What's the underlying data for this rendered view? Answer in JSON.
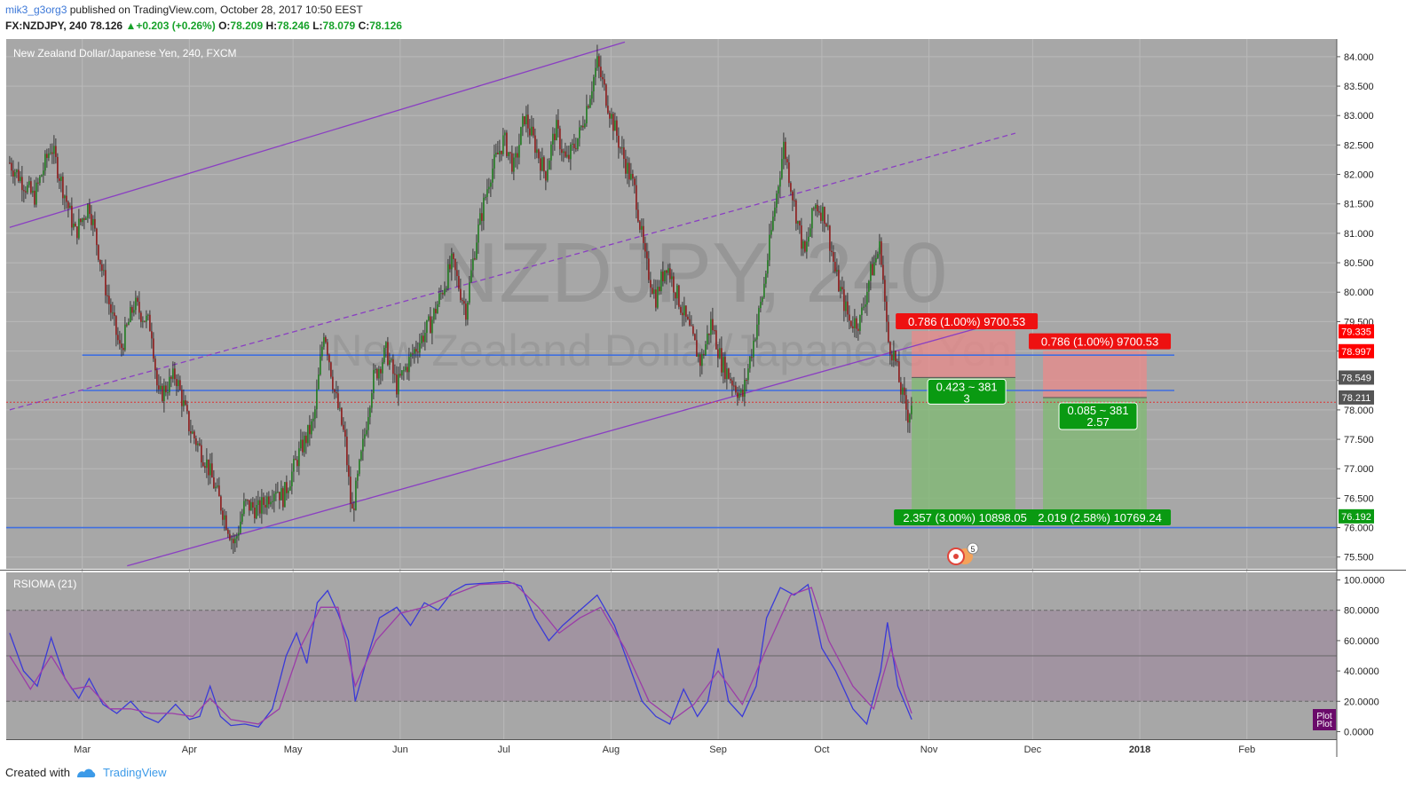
{
  "header": {
    "user": "mik3_g3org3",
    "published": "published on TradingView.com, October 28, 2017 10:50 EEST",
    "symbol_line": "FX:NZDJPY, 240",
    "last": "78.126",
    "change": "+0.203 (+0.26%)",
    "o_label": "O:",
    "o": "78.209",
    "h_label": "H:",
    "h": "78.246",
    "l_label": "L:",
    "l": "78.079",
    "c_label": "C:",
    "c": "78.126"
  },
  "chart_data": [
    {
      "type": "candlestick",
      "title": "New Zealand Dollar/Japanese Yen, 240, FXCM",
      "watermark_symbol": "NZDJPY, 240",
      "watermark_name": "New Zealand Dollar/Japanese Yen",
      "x_tick_labels": [
        "Mar",
        "Apr",
        "May",
        "Jun",
        "Jul",
        "Aug",
        "Sep",
        "Oct",
        "Nov",
        "Dec",
        "2018",
        "Feb"
      ],
      "y_tick_labels": [
        "84.000",
        "83.500",
        "83.000",
        "82.500",
        "82.000",
        "81.500",
        "81.000",
        "80.500",
        "80.000",
        "79.500",
        "79.000",
        "78.500",
        "78.000",
        "77.500",
        "77.000",
        "76.500",
        "76.000",
        "75.500"
      ],
      "ylim": [
        75.3,
        84.3
      ],
      "price_path": [
        [
          "Feb 8",
          82.2
        ],
        [
          "Feb 15",
          81.6
        ],
        [
          "Feb 20",
          82.5
        ],
        [
          "Feb 27",
          81.0
        ],
        [
          "Mar 3",
          81.5
        ],
        [
          "Mar 8",
          80.0
        ],
        [
          "Mar 12",
          79.0
        ],
        [
          "Mar 16",
          79.8
        ],
        [
          "Mar 21",
          79.4
        ],
        [
          "Mar 23",
          78.2
        ],
        [
          "Mar 28",
          78.6
        ],
        [
          "Apr 1",
          77.7
        ],
        [
          "Apr 6",
          77.1
        ],
        [
          "Apr 10",
          76.4
        ],
        [
          "Apr 14",
          75.7
        ],
        [
          "Apr 17",
          76.4
        ],
        [
          "Apr 21",
          76.3
        ],
        [
          "Apr 26",
          76.7
        ],
        [
          "Apr 28",
          76.5
        ],
        [
          "May 3",
          77.3
        ],
        [
          "May 7",
          77.8
        ],
        [
          "May 10",
          79.4
        ],
        [
          "May 13",
          78.3
        ],
        [
          "May 16",
          77.5
        ],
        [
          "May 18",
          76.2
        ],
        [
          "May 21",
          77.3
        ],
        [
          "May 24",
          78.5
        ],
        [
          "May 28",
          79.0
        ],
        [
          "May 31",
          78.4
        ],
        [
          "Jun 5",
          79.0
        ],
        [
          "Jun 10",
          79.5
        ],
        [
          "Jun 13",
          80.0
        ],
        [
          "Jun 16",
          80.5
        ],
        [
          "Jun 20",
          79.7
        ],
        [
          "Jun 23",
          80.9
        ],
        [
          "Jun 27",
          82.0
        ],
        [
          "Jul 1",
          82.6
        ],
        [
          "Jul 4",
          82.1
        ],
        [
          "Jul 7",
          83.0
        ],
        [
          "Jul 10",
          82.5
        ],
        [
          "Jul 13",
          82.0
        ],
        [
          "Jul 16",
          82.8
        ],
        [
          "Jul 19",
          82.2
        ],
        [
          "Jul 23",
          82.7
        ],
        [
          "Jul 26",
          83.4
        ],
        [
          "Jul 28",
          83.9
        ],
        [
          "Aug 1",
          83.0
        ],
        [
          "Aug 4",
          82.4
        ],
        [
          "Aug 8",
          81.7
        ],
        [
          "Aug 11",
          80.5
        ],
        [
          "Aug 14",
          79.9
        ],
        [
          "Aug 17",
          80.5
        ],
        [
          "Aug 21",
          79.8
        ],
        [
          "Aug 24",
          79.3
        ],
        [
          "Aug 27",
          78.8
        ],
        [
          "Aug 30",
          79.5
        ],
        [
          "Sep 2",
          78.8
        ],
        [
          "Sep 5",
          78.5
        ],
        [
          "Sep 8",
          78.2
        ],
        [
          "Sep 11",
          79.1
        ],
        [
          "Sep 14",
          80.0
        ],
        [
          "Sep 17",
          81.3
        ],
        [
          "Sep 20",
          82.5
        ],
        [
          "Sep 23",
          81.5
        ],
        [
          "Sep 26",
          80.6
        ],
        [
          "Sep 29",
          81.5
        ],
        [
          "Oct 2",
          81.3
        ],
        [
          "Oct 5",
          80.3
        ],
        [
          "Oct 9",
          79.5
        ],
        [
          "Oct 12",
          79.5
        ],
        [
          "Oct 15",
          80.3
        ],
        [
          "Oct 18",
          80.8
        ],
        [
          "Oct 20",
          79.2
        ],
        [
          "Oct 22",
          78.9
        ],
        [
          "Oct 24",
          78.3
        ],
        [
          "Oct 26",
          77.9
        ],
        [
          "Oct 27",
          78.13
        ]
      ],
      "trend_lines": [
        {
          "style": "solid",
          "from": [
            "Feb 8",
            81.1
          ],
          "to": [
            "Aug 5",
            84.25
          ]
        },
        {
          "style": "dashed",
          "from": [
            "Feb 8",
            78.0
          ],
          "to": [
            "Nov 26",
            82.7
          ]
        },
        {
          "style": "solid",
          "from": [
            "Mar 14",
            75.35
          ],
          "to": [
            "Nov 28",
            79.6
          ]
        }
      ],
      "horizontal_lines": [
        {
          "value": 78.93,
          "from": "Mar 1",
          "to": "Jan 11"
        },
        {
          "value": 78.33,
          "from": "Mar 1",
          "to": "Jan 11"
        },
        {
          "value": 76.0,
          "from": "Feb 8",
          "to": "Feb 28"
        }
      ],
      "current_price_line": 78.13,
      "price_badges": [
        {
          "label": "79.335",
          "value": 79.335,
          "color": "#ff0000"
        },
        {
          "label": "78.997",
          "value": 78.997,
          "color": "#ff0000"
        },
        {
          "label": "78.549",
          "value": 78.549,
          "color": "#555555"
        },
        {
          "label": "78.211",
          "value": 78.211,
          "color": "#555555"
        },
        {
          "label": "76.192",
          "value": 76.192,
          "color": "#0a9a12"
        }
      ],
      "positions": [
        {
          "from": "Oct 27",
          "to": "Nov 26",
          "entry": 78.55,
          "stop": 79.34,
          "target": 76.19,
          "stop_label": "0.786 (1.00%) 9700.53",
          "mid_label_1": "0.423 ~ 381",
          "mid_label_2": "3",
          "target_label": "2.357 (3.00%) 10898.05"
        },
        {
          "from": "Dec 4",
          "to": "Jan 3",
          "entry": 78.21,
          "stop": 79.0,
          "target": 76.19,
          "stop_label": "0.786 (1.00%) 9700.53",
          "mid_label_1": "0.085 ~ 381",
          "mid_label_2": "2.57",
          "target_label": "2.019 (2.58%) 10769.24"
        }
      ],
      "event_marker_count": "5"
    },
    {
      "type": "line",
      "title": "RSIOMA (21)",
      "y_tick_labels": [
        "100.0000",
        "80.0000",
        "60.0000",
        "40.0000",
        "20.0000",
        "0.0000"
      ],
      "ylim": [
        -5,
        105
      ],
      "bands": [
        20,
        50,
        80
      ],
      "band_fill": [
        20,
        80
      ],
      "legend_labels": [
        "Plot",
        "Plot"
      ],
      "series": [
        {
          "color": "#3a3ad8",
          "values": [
            [
              "Feb 8",
              65
            ],
            [
              "Feb 12",
              40
            ],
            [
              "Feb 16",
              30
            ],
            [
              "Feb 20",
              62
            ],
            [
              "Feb 24",
              35
            ],
            [
              "Feb 28",
              22
            ],
            [
              "Mar 3",
              35
            ],
            [
              "Mar 7",
              18
            ],
            [
              "Mar 11",
              12
            ],
            [
              "Mar 15",
              20
            ],
            [
              "Mar 19",
              10
            ],
            [
              "Mar 23",
              6
            ],
            [
              "Mar 28",
              18
            ],
            [
              "Apr 1",
              8
            ],
            [
              "Apr 4",
              10
            ],
            [
              "Apr 7",
              30
            ],
            [
              "Apr 10",
              10
            ],
            [
              "Apr 13",
              4
            ],
            [
              "Apr 17",
              5
            ],
            [
              "Apr 21",
              3
            ],
            [
              "Apr 25",
              15
            ],
            [
              "Apr 29",
              50
            ],
            [
              "May 2",
              65
            ],
            [
              "May 5",
              45
            ],
            [
              "May 8",
              85
            ],
            [
              "May 11",
              93
            ],
            [
              "May 14",
              78
            ],
            [
              "May 17",
              60
            ],
            [
              "May 19",
              20
            ],
            [
              "May 22",
              45
            ],
            [
              "May 26",
              75
            ],
            [
              "May 31",
              82
            ],
            [
              "Jun 4",
              70
            ],
            [
              "Jun 8",
              85
            ],
            [
              "Jun 12",
              80
            ],
            [
              "Jun 16",
              92
            ],
            [
              "Jun 20",
              97
            ],
            [
              "Jun 26",
              98
            ],
            [
              "Jul 2",
              99
            ],
            [
              "Jul 6",
              96
            ],
            [
              "Jul 10",
              75
            ],
            [
              "Jul 14",
              60
            ],
            [
              "Jul 18",
              70
            ],
            [
              "Jul 23",
              80
            ],
            [
              "Jul 28",
              90
            ],
            [
              "Aug 2",
              70
            ],
            [
              "Aug 6",
              45
            ],
            [
              "Aug 10",
              20
            ],
            [
              "Aug 14",
              10
            ],
            [
              "Aug 18",
              5
            ],
            [
              "Aug 22",
              28
            ],
            [
              "Aug 26",
              10
            ],
            [
              "Aug 29",
              20
            ],
            [
              "Sep 1",
              55
            ],
            [
              "Sep 4",
              20
            ],
            [
              "Sep 8",
              10
            ],
            [
              "Sep 12",
              30
            ],
            [
              "Sep 15",
              75
            ],
            [
              "Sep 19",
              95
            ],
            [
              "Sep 23",
              90
            ],
            [
              "Sep 27",
              97
            ],
            [
              "Oct 1",
              55
            ],
            [
              "Oct 5",
              40
            ],
            [
              "Oct 10",
              15
            ],
            [
              "Oct 14",
              5
            ],
            [
              "Oct 18",
              40
            ],
            [
              "Oct 20",
              72
            ],
            [
              "Oct 23",
              30
            ],
            [
              "Oct 27",
              8
            ]
          ]
        },
        {
          "color": "#9b3da8",
          "values": [
            [
              "Feb 8",
              50
            ],
            [
              "Feb 14",
              28
            ],
            [
              "Feb 20",
              50
            ],
            [
              "Feb 26",
              28
            ],
            [
              "Mar 3",
              30
            ],
            [
              "Mar 9",
              15
            ],
            [
              "Mar 15",
              15
            ],
            [
              "Mar 21",
              12
            ],
            [
              "Mar 27",
              12
            ],
            [
              "Apr 2",
              10
            ],
            [
              "Apr 7",
              22
            ],
            [
              "Apr 13",
              8
            ],
            [
              "Apr 21",
              5
            ],
            [
              "Apr 27",
              15
            ],
            [
              "May 3",
              55
            ],
            [
              "May 9",
              82
            ],
            [
              "May 14",
              82
            ],
            [
              "May 19",
              30
            ],
            [
              "May 25",
              60
            ],
            [
              "Jun 1",
              78
            ],
            [
              "Jun 8",
              82
            ],
            [
              "Jun 16",
              90
            ],
            [
              "Jun 24",
              97
            ],
            [
              "Jul 4",
              98
            ],
            [
              "Jul 11",
              82
            ],
            [
              "Jul 17",
              65
            ],
            [
              "Jul 23",
              75
            ],
            [
              "Jul 29",
              82
            ],
            [
              "Aug 5",
              55
            ],
            [
              "Aug 12",
              20
            ],
            [
              "Aug 19",
              8
            ],
            [
              "Aug 25",
              18
            ],
            [
              "Sep 1",
              40
            ],
            [
              "Sep 8",
              18
            ],
            [
              "Sep 15",
              55
            ],
            [
              "Sep 22",
              90
            ],
            [
              "Sep 28",
              95
            ],
            [
              "Oct 3",
              60
            ],
            [
              "Oct 10",
              30
            ],
            [
              "Oct 16",
              15
            ],
            [
              "Oct 21",
              55
            ],
            [
              "Oct 25",
              25
            ],
            [
              "Oct 27",
              12
            ]
          ]
        }
      ]
    }
  ],
  "footer": {
    "created_with": "Created with",
    "brand": "TradingView"
  }
}
